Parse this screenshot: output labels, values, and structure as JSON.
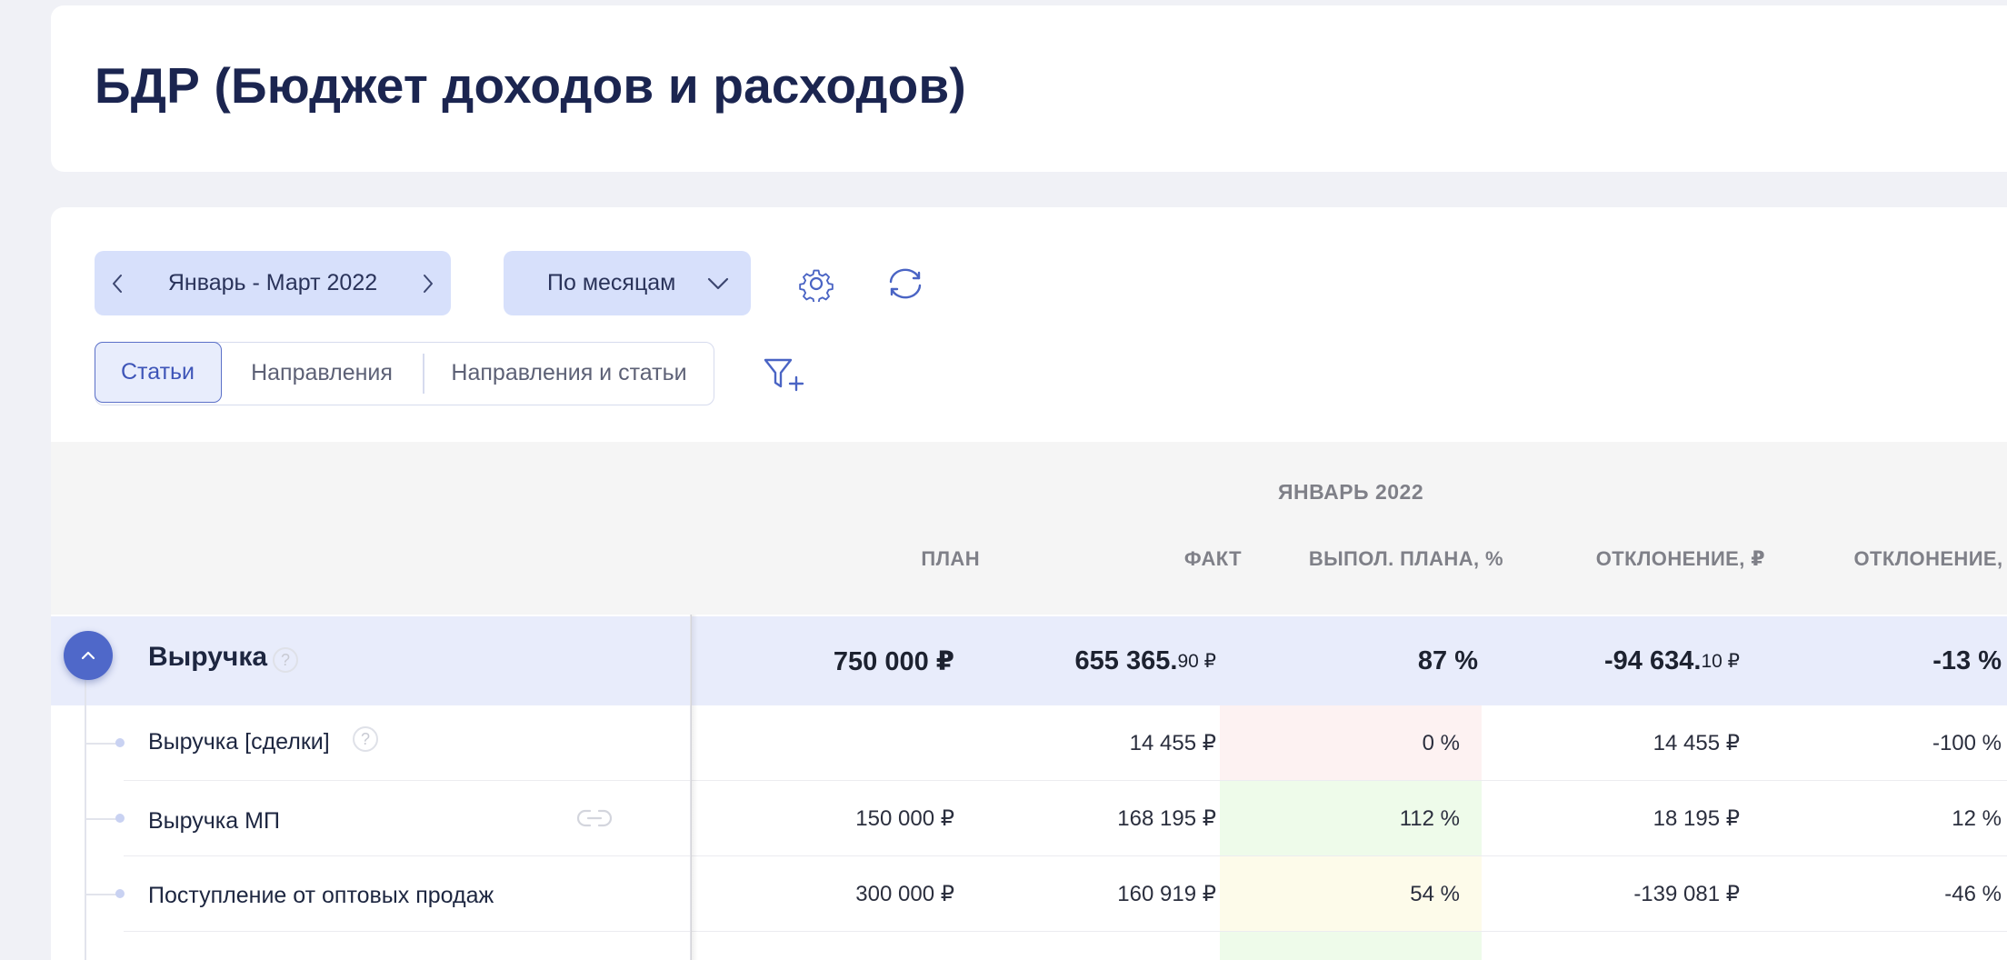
{
  "page": {
    "title": "БДР (Бюджет доходов и расходов)"
  },
  "toolbar": {
    "period_label": "Январь - Март 2022",
    "grouping_label": "По месяцам",
    "icons": {
      "prev": "chevron-left-icon",
      "next": "chevron-right-icon",
      "dropdown": "chevron-down-icon",
      "settings": "gear-icon",
      "refresh": "refresh-icon",
      "filter": "filter-add-icon"
    }
  },
  "tabs": [
    {
      "label": "Статьи",
      "active": true
    },
    {
      "label": "Направления",
      "active": false
    },
    {
      "label": "Направления и статьи",
      "active": false
    }
  ],
  "table": {
    "month_header": "ЯНВАРЬ 2022",
    "columns": [
      "ПЛАН",
      "ФАКТ",
      "ВЫПОЛ. ПЛАНА, %",
      "ОТКЛОНЕНИЕ, ₽",
      "ОТКЛОНЕНИЕ, %"
    ],
    "total_row": {
      "name": "Выручка",
      "plan": "750 000 ₽",
      "fact_main": "655 365.",
      "fact_cents": "90 ₽",
      "completion": "87 %",
      "dev_rub_main": "-94 634.",
      "dev_rub_cents": "10 ₽",
      "dev_pct": "-13 %"
    },
    "rows": [
      {
        "name": "Выручка [сделки]",
        "plan": "",
        "fact": "14 455 ₽",
        "completion": "0 %",
        "dev_rub": "14 455 ₽",
        "dev_pct": "-100 %",
        "completion_color": "#fdf2f2"
      },
      {
        "name": "Выручка МП",
        "plan": "150 000 ₽",
        "fact": "168 195 ₽",
        "completion": "112 %",
        "dev_rub": "18 195 ₽",
        "dev_pct": "12 %",
        "completion_color": "#eefbea"
      },
      {
        "name": "Поступление от оптовых продаж",
        "plan": "300 000 ₽",
        "fact": "160 919 ₽",
        "completion": "54 %",
        "dev_rub": "-139 081 ₽",
        "dev_pct": "-46 %",
        "completion_color": "#fdfbea"
      }
    ]
  }
}
